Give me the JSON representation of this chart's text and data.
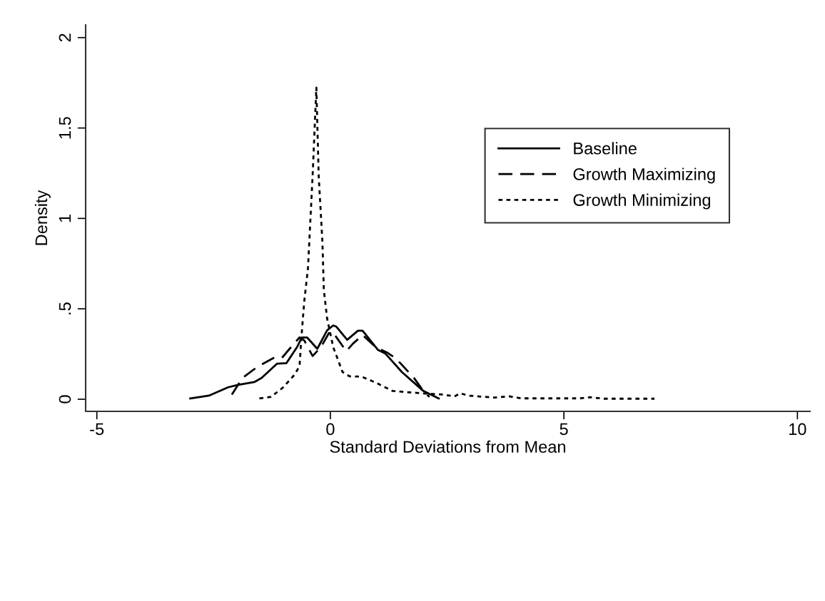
{
  "chart_data": {
    "type": "line",
    "xlabel": "Standard Deviations from Mean",
    "ylabel": "Density",
    "xlim": [
      -5.24,
      10.27
    ],
    "xticks": [
      -5,
      0,
      5,
      10
    ],
    "ylim": [
      -0.067,
      2.07
    ],
    "yticks": [
      0,
      {
        "value": 0.5,
        "label": ".5"
      },
      1,
      1.5,
      2
    ],
    "grid": false,
    "legend": "right",
    "marker": "none",
    "series": [
      {
        "name": "Baseline",
        "color": "#000000",
        "line_style": "solid",
        "x": [
          -3.0,
          -2.6,
          -2.19,
          -1.98,
          -1.63,
          -1.47,
          -1.14,
          -0.94,
          -0.71,
          -0.61,
          -0.5,
          -0.28,
          -0.07,
          0.06,
          0.13,
          0.36,
          0.59,
          0.69,
          1.02,
          1.18,
          1.53,
          1.99,
          2.32
        ],
        "values": [
          0.004,
          0.02,
          0.066,
          0.079,
          0.095,
          0.118,
          0.197,
          0.2,
          0.29,
          0.342,
          0.342,
          0.279,
          0.381,
          0.408,
          0.401,
          0.329,
          0.379,
          0.379,
          0.273,
          0.252,
          0.151,
          0.046,
          0.004
        ]
      },
      {
        "name": "Growth Maximizing",
        "color": "#000000",
        "line_style": "dashed",
        "x": [
          -2.11,
          -1.88,
          -1.57,
          -1.22,
          -1.04,
          -0.86,
          -0.66,
          -0.56,
          -0.38,
          -0.2,
          -0.02,
          0.06,
          0.34,
          0.49,
          0.69,
          0.97,
          1.23,
          1.41,
          1.79,
          1.99,
          2.12
        ],
        "values": [
          0.026,
          0.118,
          0.178,
          0.228,
          0.228,
          0.283,
          0.342,
          0.326,
          0.239,
          0.289,
          0.371,
          0.368,
          0.266,
          0.309,
          0.355,
          0.289,
          0.256,
          0.224,
          0.118,
          0.046,
          0.013
        ]
      },
      {
        "name": "Growth Minimizing",
        "color": "#000000",
        "line_style": "dotted",
        "x": [
          -1.52,
          -1.27,
          -1.01,
          -0.76,
          -0.66,
          -0.62,
          -0.56,
          -0.48,
          -0.38,
          -0.3,
          -0.25,
          -0.17,
          -0.14,
          -0.07,
          0.06,
          0.26,
          0.41,
          0.67,
          0.97,
          1.33,
          1.94,
          2.4,
          2.66,
          2.78,
          2.96,
          3.52,
          3.83,
          4.08,
          5.36,
          5.56,
          5.87,
          6.94
        ],
        "values": [
          0.004,
          0.013,
          0.066,
          0.138,
          0.184,
          0.342,
          0.539,
          0.723,
          1.236,
          1.723,
          1.236,
          0.868,
          0.605,
          0.447,
          0.289,
          0.151,
          0.127,
          0.125,
          0.092,
          0.046,
          0.033,
          0.026,
          0.016,
          0.033,
          0.02,
          0.009,
          0.016,
          0.005,
          0.005,
          0.011,
          0.003,
          0.003
        ]
      }
    ]
  }
}
